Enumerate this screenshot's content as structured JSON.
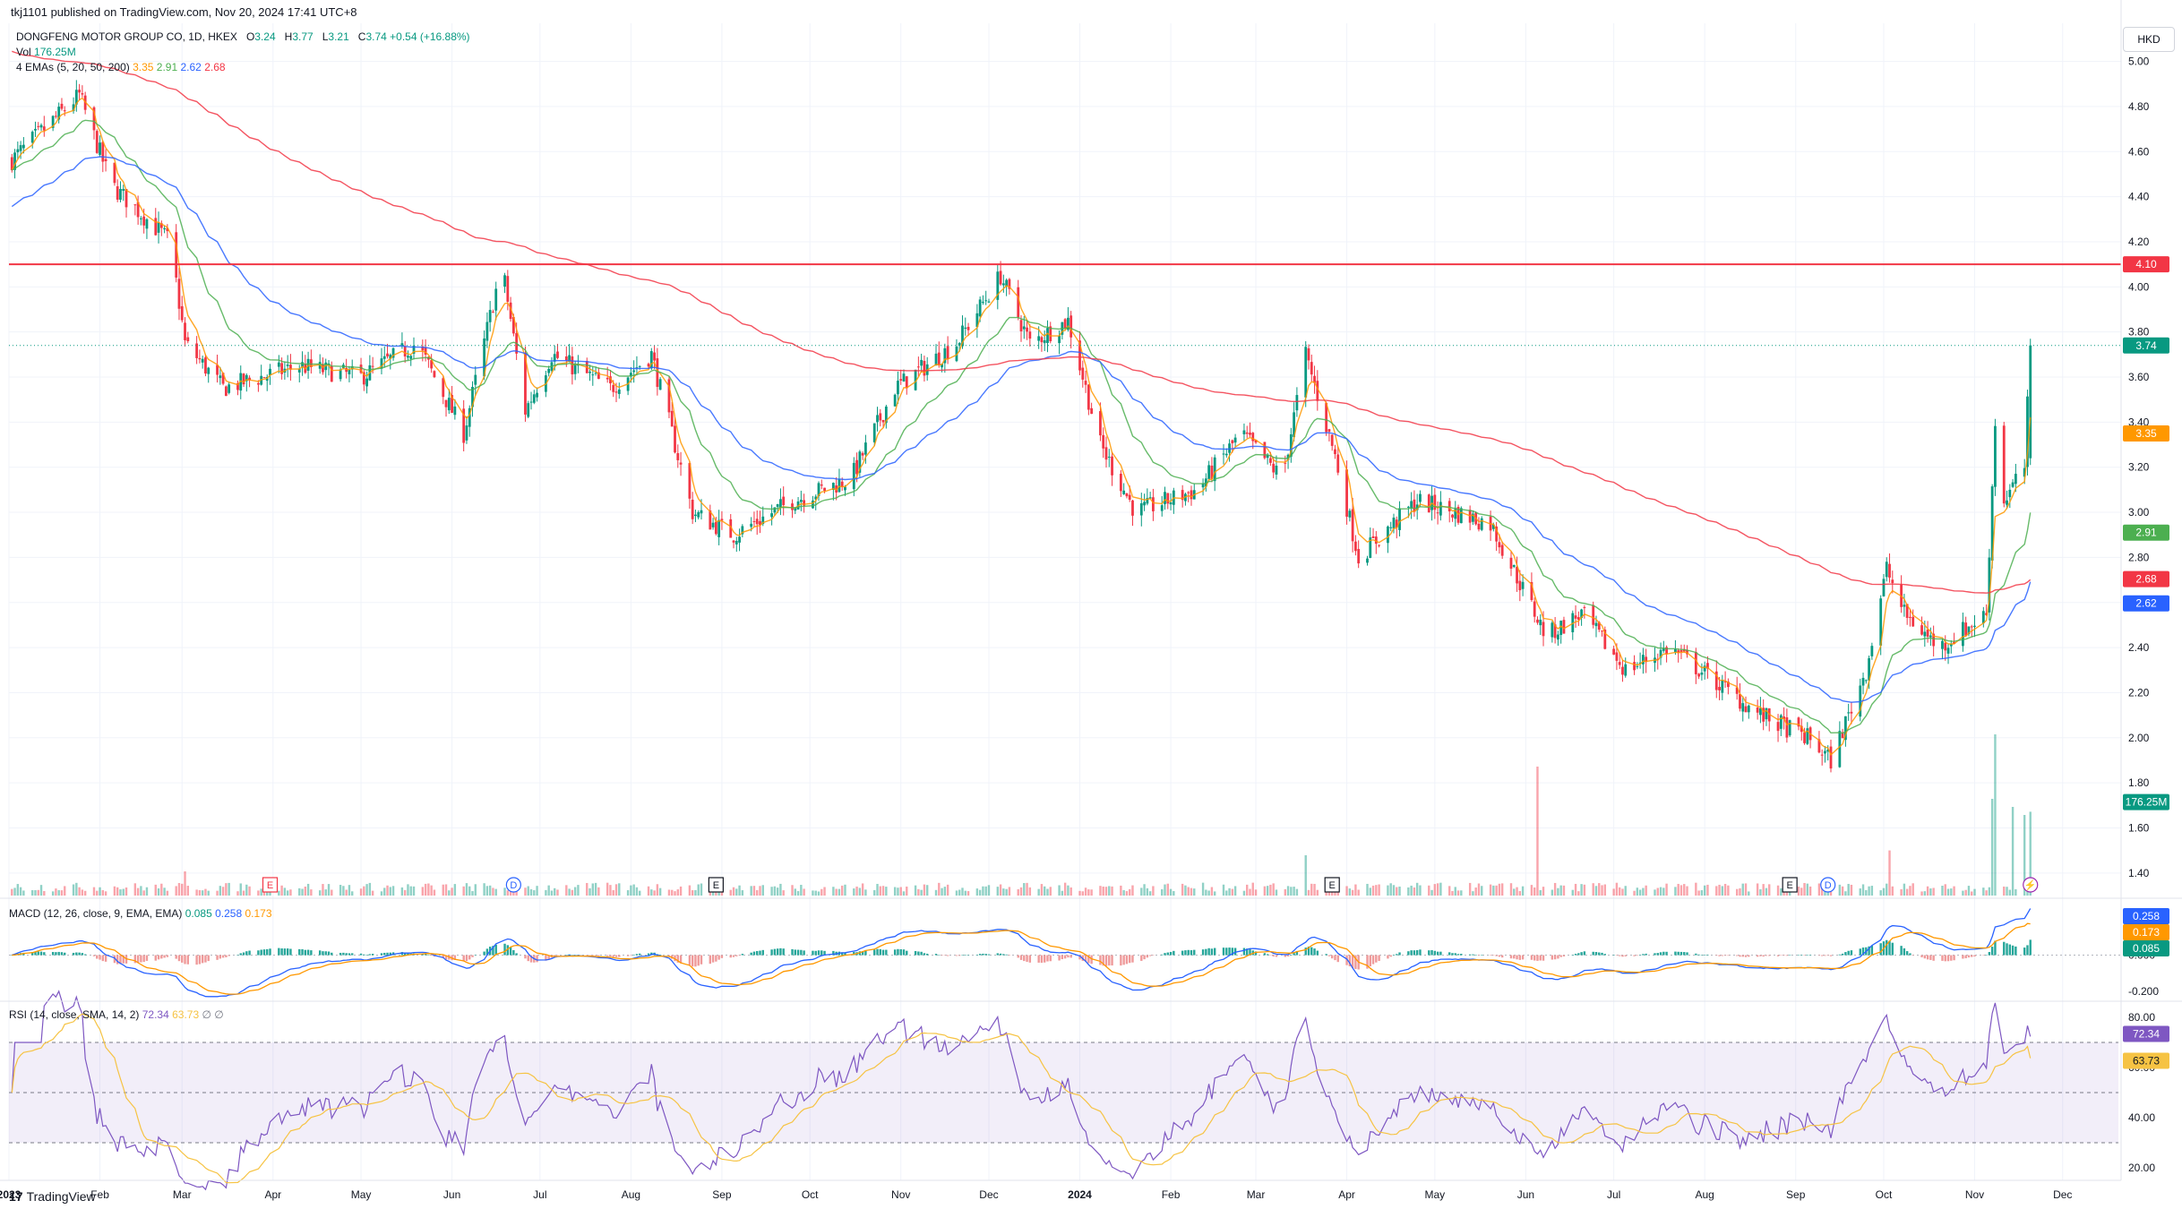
{
  "header": {
    "published": "tkj1101 published on TradingView.com, Nov 20, 2024 17:41 UTC+8",
    "symbol": "DONGFENG MOTOR GROUP CO, 1D, HKEX",
    "ohlc": {
      "o_label": "O",
      "o": "3.24",
      "h_label": "H",
      "h": "3.77",
      "l_label": "L",
      "l": "3.21",
      "c_label": "C",
      "c": "3.74",
      "change": "+0.54 (+16.88%)"
    },
    "vol_label": "Vol",
    "vol_value": "176.25M",
    "ema_label": "4 EMAs (5, 20, 50, 200)",
    "ema_values": [
      "3.35",
      "2.91",
      "2.62",
      "2.68"
    ],
    "macd_label": "MACD (12, 26, close, 9, EMA, EMA)",
    "macd_values": [
      "0.085",
      "0.258",
      "0.173"
    ],
    "rsi_label": "RSI (14, close, SMA, 14, 2)",
    "rsi_values": [
      "72.34",
      "63.73",
      "∅",
      "∅"
    ],
    "currency": "HKD"
  },
  "brand": {
    "logo": "17",
    "name": "TradingView"
  },
  "colors": {
    "up": "#089981",
    "down": "#f23645",
    "ema5": "#ff9800",
    "ema20": "#4caf50",
    "ema50": "#2962ff",
    "ema200": "#f23645",
    "rsi": "#7e57c2",
    "rsi_ma": "#f6c343",
    "macd": "#2962ff",
    "signal": "#ff9800"
  },
  "chart_data": {
    "type": "candlestick",
    "main": {
      "ylim": [
        1.3,
        5.05
      ],
      "y_ticks": [
        "5.00",
        "4.80",
        "4.60",
        "4.40",
        "4.20",
        "4.00",
        "3.80",
        "3.60",
        "3.40",
        "3.20",
        "3.00",
        "2.80",
        "2.60",
        "2.40",
        "2.20",
        "2.00",
        "1.80",
        "1.60",
        "1.40"
      ],
      "resistance_line": 4.1,
      "resistance_label": "4.10",
      "last_price_label": "3.74",
      "last_price": 3.74,
      "ema_labels": [
        "3.35",
        "2.91",
        "2.68",
        "2.62"
      ],
      "volume_label": "176.25M",
      "keypoints": [
        [
          "2023-01-01",
          4.55
        ],
        [
          "2023-01-25",
          4.85
        ],
        [
          "2023-02-05",
          4.45
        ],
        [
          "2023-02-25",
          4.2
        ],
        [
          "2023-03-02",
          3.75
        ],
        [
          "2023-03-15",
          3.55
        ],
        [
          "2023-04-10",
          3.65
        ],
        [
          "2023-05-01",
          3.6
        ],
        [
          "2023-05-20",
          3.75
        ],
        [
          "2023-06-05",
          3.35
        ],
        [
          "2023-06-18",
          4.1
        ],
        [
          "2023-06-26",
          3.45
        ],
        [
          "2023-07-05",
          3.7
        ],
        [
          "2023-07-25",
          3.55
        ],
        [
          "2023-08-08",
          3.7
        ],
        [
          "2023-08-22",
          3.0
        ],
        [
          "2023-09-05",
          2.9
        ],
        [
          "2023-09-25",
          3.05
        ],
        [
          "2023-10-15",
          3.15
        ],
        [
          "2023-10-30",
          3.55
        ],
        [
          "2023-11-20",
          3.75
        ],
        [
          "2023-12-05",
          4.05
        ],
        [
          "2023-12-15",
          3.75
        ],
        [
          "2023-12-28",
          3.85
        ],
        [
          "2024-01-08",
          3.3
        ],
        [
          "2024-01-20",
          3.0
        ],
        [
          "2024-02-10",
          3.1
        ],
        [
          "2024-02-25",
          3.35
        ],
        [
          "2024-03-10",
          3.15
        ],
        [
          "2024-03-18",
          3.7
        ],
        [
          "2024-03-28",
          3.25
        ],
        [
          "2024-04-05",
          2.8
        ],
        [
          "2024-04-25",
          3.05
        ],
        [
          "2024-05-20",
          2.95
        ],
        [
          "2024-06-08",
          2.45
        ],
        [
          "2024-06-20",
          2.55
        ],
        [
          "2024-07-05",
          2.3
        ],
        [
          "2024-07-20",
          2.4
        ],
        [
          "2024-08-20",
          2.1
        ],
        [
          "2024-09-05",
          2.0
        ],
        [
          "2024-09-13",
          1.9
        ],
        [
          "2024-09-25",
          2.3
        ],
        [
          "2024-10-02",
          2.75
        ],
        [
          "2024-10-08",
          2.55
        ],
        [
          "2024-10-20",
          2.4
        ],
        [
          "2024-11-05",
          2.55
        ],
        [
          "2024-11-08",
          3.4
        ],
        [
          "2024-11-11",
          3.05
        ],
        [
          "2024-11-18",
          3.2
        ],
        [
          "2024-11-20",
          3.74
        ]
      ]
    },
    "x_labels": [
      {
        "date": "2023-01-01",
        "label": "2023"
      },
      {
        "date": "2023-02-01",
        "label": "Feb"
      },
      {
        "date": "2023-03-01",
        "label": "Mar"
      },
      {
        "date": "2023-04-01",
        "label": "Apr"
      },
      {
        "date": "2023-05-01",
        "label": "May"
      },
      {
        "date": "2023-06-01",
        "label": "Jun"
      },
      {
        "date": "2023-07-01",
        "label": "Jul"
      },
      {
        "date": "2023-08-01",
        "label": "Aug"
      },
      {
        "date": "2023-09-01",
        "label": "Sep"
      },
      {
        "date": "2023-10-01",
        "label": "Oct"
      },
      {
        "date": "2023-11-01",
        "label": "Nov"
      },
      {
        "date": "2023-12-01",
        "label": "Dec"
      },
      {
        "date": "2024-01-01",
        "label": "2024"
      },
      {
        "date": "2024-02-01",
        "label": "Feb"
      },
      {
        "date": "2024-03-01",
        "label": "Mar"
      },
      {
        "date": "2024-04-01",
        "label": "Apr"
      },
      {
        "date": "2024-05-01",
        "label": "May"
      },
      {
        "date": "2024-06-01",
        "label": "Jun"
      },
      {
        "date": "2024-07-01",
        "label": "Jul"
      },
      {
        "date": "2024-08-01",
        "label": "Aug"
      },
      {
        "date": "2024-09-01",
        "label": "Sep"
      },
      {
        "date": "2024-10-01",
        "label": "Oct"
      },
      {
        "date": "2024-11-01",
        "label": "Nov"
      },
      {
        "date": "2024-12-01",
        "label": "Dec"
      }
    ],
    "event_markers": [
      {
        "date": "2023-03-31",
        "label": "E",
        "color": "#f23645"
      },
      {
        "date": "2023-06-22",
        "label": "D",
        "color": "#2962ff"
      },
      {
        "date": "2023-08-30",
        "label": "E",
        "color": "#131722"
      },
      {
        "date": "2024-03-27",
        "label": "E",
        "color": "#131722"
      },
      {
        "date": "2024-08-30",
        "label": "E",
        "color": "#131722"
      },
      {
        "date": "2024-09-12",
        "label": "D",
        "color": "#2962ff"
      },
      {
        "date": "2024-11-20",
        "label": "⚡",
        "color": "#9c27b0"
      }
    ],
    "volume_spikes": [
      [
        "2024-06-05",
        8.0
      ],
      [
        "2024-11-08",
        10.0
      ],
      [
        "2024-11-07",
        6.0
      ],
      [
        "2024-11-14",
        5.5
      ],
      [
        "2024-11-18",
        5.0
      ],
      [
        "2024-11-20",
        5.2
      ],
      [
        "2023-03-02",
        1.5
      ],
      [
        "2024-03-18",
        2.5
      ],
      [
        "2024-10-03",
        2.8
      ]
    ],
    "macd": {
      "ylim": [
        -0.24,
        0.29
      ],
      "y_ticks": [
        "0.000",
        "-0.200"
      ],
      "labels": [
        "0.258",
        "0.173",
        "0.085"
      ]
    },
    "rsi": {
      "ylim": [
        15,
        85
      ],
      "y_ticks": [
        "80.00",
        "60.00",
        "40.00",
        "20.00"
      ],
      "upper_band": 70,
      "lower_band": 30,
      "labels": [
        "72.34",
        "63.73"
      ]
    }
  }
}
